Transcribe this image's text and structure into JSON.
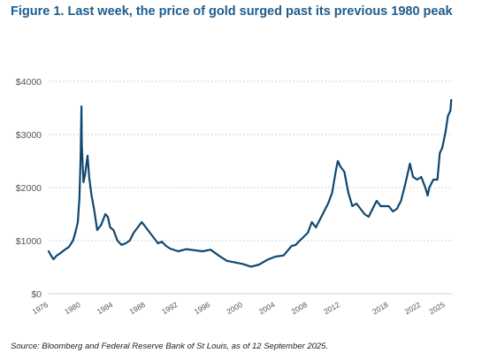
{
  "title": "Figure 1. Last week, the price of gold surged past its previous 1980 peak",
  "source": "Source: Bloomberg and Federal Reserve Bank of St Louis, as of 12 September 2025.",
  "colors": {
    "title": "#1f5c8c",
    "line": "#0f4770",
    "grid": "#d5d5d5"
  },
  "chart_data": {
    "type": "line",
    "title": "Figure 1. Last week, the price of gold surged past its previous 1980 peak",
    "xlabel": "",
    "ylabel": "",
    "xlim": [
      1976,
      2025.9
    ],
    "ylim": [
      0,
      4000
    ],
    "y_ticks": [
      0,
      1000,
      2000,
      3000,
      4000
    ],
    "y_tick_labels": [
      "$0",
      "$1000",
      "$2000",
      "$3000",
      "$4000"
    ],
    "x_ticks": [
      1976,
      1980,
      1984,
      1988,
      1992,
      1996,
      2000,
      2004,
      2008,
      2012,
      2018,
      2022,
      2025
    ],
    "x_tick_labels": [
      "1976",
      "1980",
      "1984",
      "1988",
      "1992",
      "1996",
      "2000",
      "2004",
      "2008",
      "2012",
      "2018",
      "2022",
      "2025"
    ],
    "grid": "horizontal",
    "series": [
      {
        "x": [
          1976.0,
          1976.3,
          1976.6,
          1977.0,
          1977.5,
          1978.0,
          1978.5,
          1979.0,
          1979.3,
          1979.6,
          1979.8,
          1979.95,
          1980.05,
          1980.1,
          1980.3,
          1980.5,
          1980.8,
          1981.0,
          1981.3,
          1981.6,
          1982.0,
          1982.5,
          1983.0,
          1983.3,
          1983.6,
          1984.0,
          1984.5,
          1985.0,
          1985.5,
          1986.0,
          1986.5,
          1987.0,
          1987.5,
          1988.0,
          1988.5,
          1989.0,
          1989.5,
          1990.0,
          1990.5,
          1991.0,
          1992.0,
          1993.0,
          1994.0,
          1995.0,
          1996.0,
          1997.0,
          1998.0,
          1999.0,
          2000.0,
          2001.0,
          2002.0,
          2003.0,
          2004.0,
          2005.0,
          2006.0,
          2006.5,
          2007.0,
          2008.0,
          2008.5,
          2009.0,
          2009.5,
          2010.0,
          2010.5,
          2011.0,
          2011.5,
          2011.7,
          2012.0,
          2012.5,
          2013.0,
          2013.5,
          2014.0,
          2015.0,
          2015.5,
          2016.0,
          2016.5,
          2017.0,
          2018.0,
          2018.5,
          2019.0,
          2019.5,
          2020.0,
          2020.6,
          2021.0,
          2021.5,
          2022.0,
          2022.5,
          2022.8,
          2023.0,
          2023.5,
          2024.0,
          2024.3,
          2024.6,
          2025.0,
          2025.3,
          2025.6,
          2025.7
        ],
        "values": [
          800,
          720,
          650,
          720,
          770,
          830,
          880,
          1000,
          1150,
          1350,
          1800,
          2600,
          3530,
          2800,
          2100,
          2250,
          2600,
          2200,
          1850,
          1600,
          1200,
          1300,
          1500,
          1450,
          1250,
          1200,
          1000,
          920,
          950,
          1000,
          1150,
          1250,
          1350,
          1250,
          1150,
          1050,
          950,
          980,
          900,
          850,
          800,
          840,
          820,
          800,
          830,
          720,
          620,
          590,
          560,
          510,
          550,
          640,
          700,
          720,
          900,
          920,
          1000,
          1150,
          1350,
          1250,
          1400,
          1550,
          1700,
          1900,
          2350,
          2500,
          2400,
          2300,
          1900,
          1650,
          1700,
          1500,
          1450,
          1600,
          1750,
          1650,
          1650,
          1550,
          1600,
          1750,
          2050,
          2450,
          2200,
          2150,
          2200,
          2000,
          1850,
          2000,
          2150,
          2150,
          2650,
          2750,
          3050,
          3350,
          3450,
          3650
        ]
      }
    ]
  }
}
